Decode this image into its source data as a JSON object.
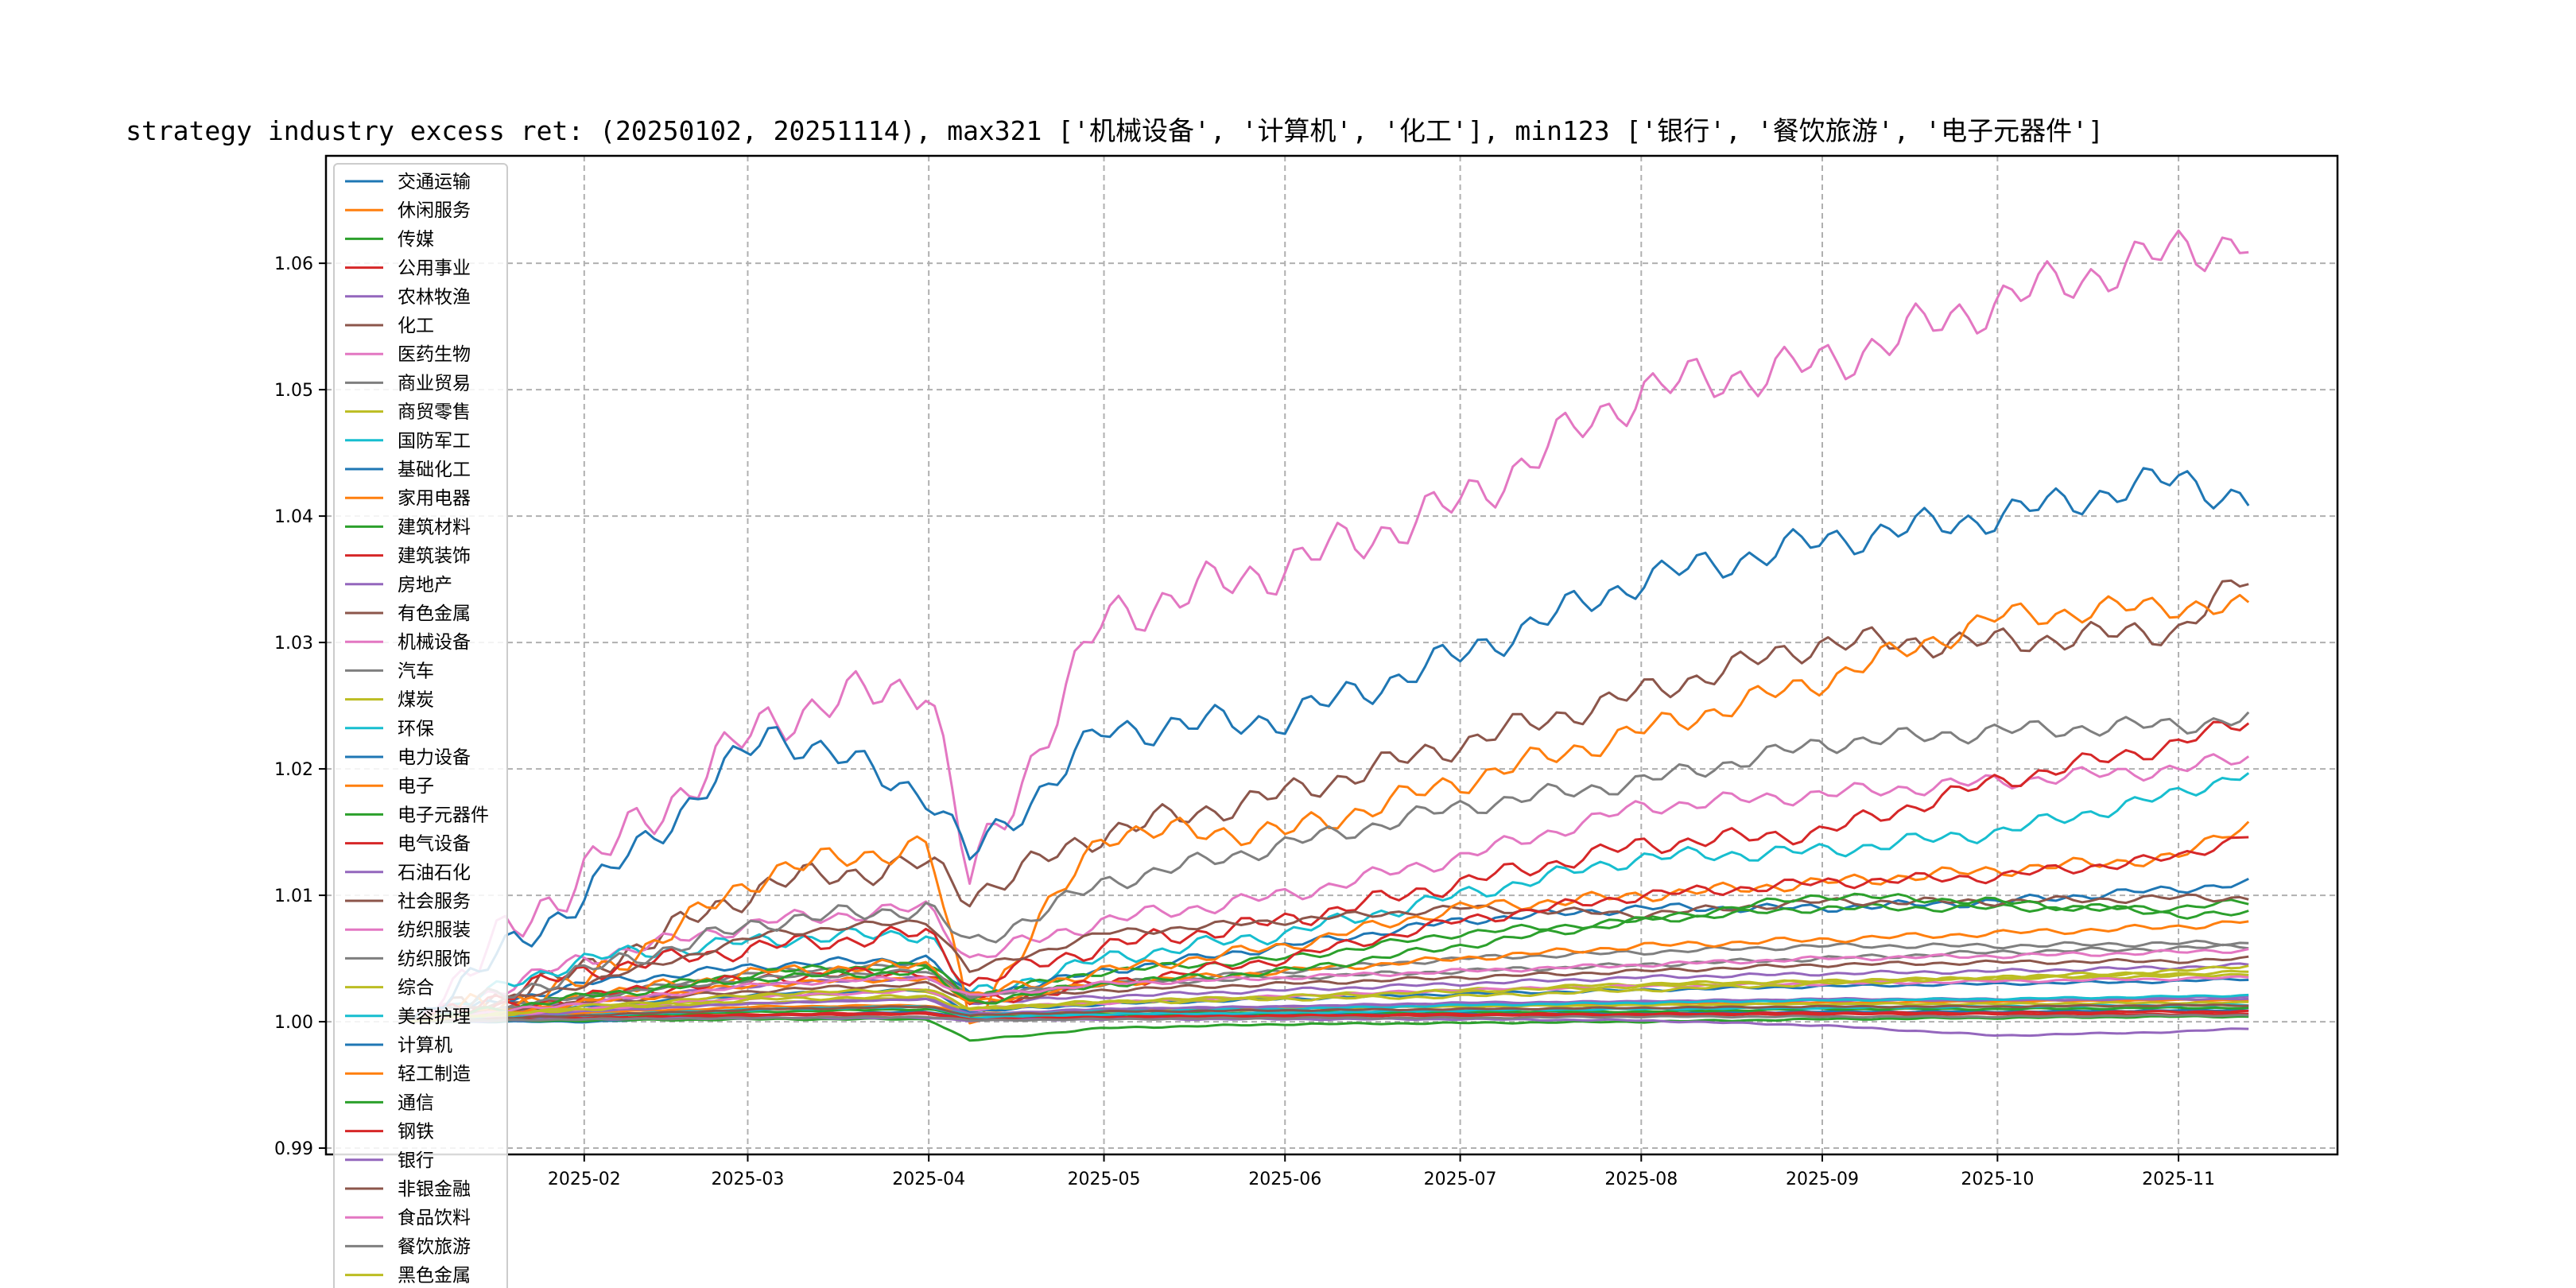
{
  "chart_data": {
    "type": "line",
    "title": "strategy industry excess ret: (20250102, 20251114), max321 ['机械设备', '计算机', '化工'], min123 ['银行', '餐饮旅游', '电子元器件']",
    "xlabel": "",
    "ylabel": "",
    "x_range": [
      "2025-01-02",
      "2025-11-14"
    ],
    "ylim": [
      0.9895,
      1.0685
    ],
    "x_ticks": [
      "2025-02",
      "2025-03",
      "2025-04",
      "2025-05",
      "2025-06",
      "2025-07",
      "2025-08",
      "2025-09",
      "2025-10",
      "2025-11"
    ],
    "y_ticks": [
      "0.99",
      "1.00",
      "1.01",
      "1.02",
      "1.03",
      "1.04",
      "1.05",
      "1.06"
    ],
    "grid": true,
    "legend_position": "upper-left",
    "knot_dates": [
      "2025-01-02",
      "2025-02-01",
      "2025-03-05",
      "2025-04-01",
      "2025-04-08",
      "2025-05-01",
      "2025-06-01",
      "2025-07-01",
      "2025-08-01",
      "2025-09-01",
      "2025-10-01",
      "2025-11-01",
      "2025-11-14"
    ],
    "series": [
      {
        "name": "交通运输",
        "color": "#1f77b4",
        "values": [
          1.0,
          1.0,
          1.0005,
          1.0008,
          1.0003,
          1.0005,
          1.0006,
          1.0007,
          1.0007,
          1.0008,
          1.0008,
          1.0009,
          1.0009
        ]
      },
      {
        "name": "休闲服务",
        "color": "#ff7f0e",
        "values": [
          1.0,
          1.0007,
          1.0012,
          1.0013,
          1.0006,
          1.0009,
          1.0011,
          1.0013,
          1.0014,
          1.0015,
          1.0016,
          1.0017,
          1.0017
        ]
      },
      {
        "name": "传媒",
        "color": "#2ca02c",
        "values": [
          1.0,
          1.0004,
          1.0008,
          1.001,
          1.0004,
          1.0006,
          1.0007,
          1.0008,
          1.0008,
          1.001,
          1.001,
          1.0011,
          1.0011
        ]
      },
      {
        "name": "公用事业",
        "color": "#d62728",
        "values": [
          1.0,
          1.0003,
          1.0006,
          1.0007,
          1.0002,
          1.0004,
          1.0005,
          1.0006,
          1.0006,
          1.0007,
          1.0007,
          1.0008,
          1.0008
        ]
      },
      {
        "name": "农林牧渔",
        "color": "#9467bd",
        "values": [
          1.0,
          1.0015,
          1.003,
          1.0035,
          1.0015,
          1.002,
          1.0025,
          1.003,
          1.0035,
          1.0038,
          1.004,
          1.0043,
          1.0045
        ]
      },
      {
        "name": "化工",
        "color": "#8c564b",
        "values": [
          1.0,
          1.004,
          1.011,
          1.0125,
          1.01,
          1.015,
          1.018,
          1.022,
          1.026,
          1.03,
          1.03,
          1.031,
          1.0355
        ]
      },
      {
        "name": "医药生物",
        "color": "#e377c2",
        "values": [
          1.0,
          1.005,
          1.008,
          1.009,
          1.005,
          1.008,
          1.01,
          1.013,
          1.017,
          1.018,
          1.019,
          1.02,
          1.021
        ]
      },
      {
        "name": "商业贸易",
        "color": "#7f7f7f",
        "values": [
          1.0,
          1.002,
          1.004,
          1.0045,
          1.002,
          1.003,
          1.004,
          1.005,
          1.0055,
          1.006,
          1.006,
          1.0062,
          1.0062
        ]
      },
      {
        "name": "商贸零售",
        "color": "#bcbd22",
        "values": [
          1.0,
          1.001,
          1.002,
          1.0025,
          1.001,
          1.0015,
          1.002,
          1.0025,
          1.003,
          1.0032,
          1.0034,
          1.0036,
          1.0038
        ]
      },
      {
        "name": "国防军工",
        "color": "#17becf",
        "values": [
          1.0,
          1.005,
          1.0065,
          1.007,
          1.002,
          1.005,
          1.007,
          1.01,
          1.013,
          1.0135,
          1.015,
          1.018,
          1.02
        ]
      },
      {
        "name": "基础化工",
        "color": "#1f77b4",
        "values": [
          1.0,
          1.003,
          1.0045,
          1.005,
          1.002,
          1.004,
          1.006,
          1.008,
          1.009,
          1.009,
          1.0095,
          1.0105,
          1.011
        ]
      },
      {
        "name": "家用电器",
        "color": "#ff7f0e",
        "values": [
          1.0,
          1.003,
          1.012,
          1.014,
          1.0,
          1.015,
          1.015,
          1.019,
          1.023,
          1.027,
          1.032,
          1.033,
          1.0325
        ]
      },
      {
        "name": "建筑材料",
        "color": "#2ca02c",
        "values": [
          1.0,
          1.002,
          1.004,
          1.0045,
          1.002,
          1.004,
          1.005,
          1.007,
          1.008,
          1.009,
          1.009,
          1.009,
          1.0095
        ]
      },
      {
        "name": "建筑装饰",
        "color": "#d62728",
        "values": [
          1.0,
          1.004,
          1.006,
          1.007,
          1.003,
          1.006,
          1.008,
          1.011,
          1.014,
          1.015,
          1.019,
          1.022,
          1.024
        ]
      },
      {
        "name": "房地产",
        "color": "#9467bd",
        "values": [
          1.0,
          1.001,
          1.0015,
          1.0018,
          1.0005,
          1.001,
          1.0012,
          1.0015,
          1.0016,
          1.0018,
          1.0018,
          1.0019,
          1.002
        ]
      },
      {
        "name": "有色金属",
        "color": "#8c564b",
        "values": [
          1.0,
          1.003,
          1.007,
          1.008,
          1.004,
          1.007,
          1.008,
          1.009,
          1.0085,
          1.0095,
          1.0095,
          1.0098,
          1.0098
        ]
      },
      {
        "name": "机械设备",
        "color": "#e377c2",
        "values": [
          1.0,
          1.012,
          1.024,
          1.027,
          1.011,
          1.032,
          1.036,
          1.041,
          1.05,
          1.052,
          1.057,
          1.061,
          1.062
        ]
      },
      {
        "name": "汽车",
        "color": "#7f7f7f",
        "values": [
          1.0,
          1.004,
          1.008,
          1.009,
          1.006,
          1.011,
          1.014,
          1.017,
          1.019,
          1.022,
          1.023,
          1.0235,
          1.024
        ]
      },
      {
        "name": "煤炭",
        "color": "#bcbd22",
        "values": [
          1.0,
          1.001,
          1.0015,
          1.002,
          1.0005,
          1.0008,
          1.001,
          1.0012,
          1.0013,
          1.0014,
          1.0014,
          1.0015,
          1.0015
        ]
      },
      {
        "name": "环保",
        "color": "#17becf",
        "values": [
          1.0,
          1.0005,
          1.001,
          1.0012,
          1.0003,
          1.0006,
          1.0007,
          1.0009,
          1.001,
          1.0011,
          1.0012,
          1.0013,
          1.0013
        ]
      },
      {
        "name": "电力设备",
        "color": "#1f77b4",
        "values": [
          1.0,
          1.0012,
          1.0022,
          1.0025,
          1.0008,
          1.0014,
          1.0018,
          1.0022,
          1.0025,
          1.0028,
          1.003,
          1.0032,
          1.0034
        ]
      },
      {
        "name": "电子",
        "color": "#ff7f0e",
        "values": [
          1.0,
          1.002,
          1.004,
          1.0045,
          1.002,
          1.004,
          1.006,
          1.009,
          1.01,
          1.011,
          1.012,
          1.013,
          1.016
        ]
      },
      {
        "name": "电子元器件",
        "color": "#2ca02c",
        "values": [
          1.0,
          1.0001,
          1.0002,
          1.0002,
          0.9985,
          0.9995,
          0.9998,
          0.9999,
          1.0,
          1.0002,
          1.0003,
          1.0004,
          1.0004
        ]
      },
      {
        "name": "电气设备",
        "color": "#d62728",
        "values": [
          1.0,
          1.002,
          1.0035,
          1.004,
          1.0015,
          1.003,
          1.005,
          1.008,
          1.01,
          1.011,
          1.0115,
          1.013,
          1.015
        ]
      },
      {
        "name": "石油石化",
        "color": "#9467bd",
        "values": [
          1.0,
          1.0008,
          1.0015,
          1.0018,
          1.0006,
          1.001,
          1.0012,
          1.0014,
          1.0016,
          1.0017,
          1.0017,
          1.0018,
          1.0018
        ]
      },
      {
        "name": "社会服务",
        "color": "#8c564b",
        "values": [
          1.0,
          1.0015,
          1.0025,
          1.003,
          1.0015,
          1.0025,
          1.003,
          1.0035,
          1.004,
          1.0045,
          1.0047,
          1.0048,
          1.005
        ]
      },
      {
        "name": "纺织服装",
        "color": "#e377c2",
        "values": [
          1.0,
          1.001,
          1.002,
          1.0025,
          1.001,
          1.0015,
          1.002,
          1.0025,
          1.0028,
          1.003,
          1.0032,
          1.0034,
          1.0035
        ]
      },
      {
        "name": "纺织服饰",
        "color": "#7f7f7f",
        "values": [
          1.0,
          1.002,
          1.0035,
          1.004,
          1.002,
          1.003,
          1.0035,
          1.004,
          1.0045,
          1.005,
          1.0055,
          1.0058,
          1.006
        ]
      },
      {
        "name": "综合",
        "color": "#bcbd22",
        "values": [
          1.0,
          1.001,
          1.0018,
          1.002,
          1.001,
          1.0015,
          1.0018,
          1.002,
          1.0025,
          1.003,
          1.0035,
          1.004,
          1.0045
        ]
      },
      {
        "name": "美容护理",
        "color": "#17becf",
        "values": [
          1.0,
          1.0005,
          1.001,
          1.0012,
          1.0005,
          1.0008,
          1.001,
          1.0013,
          1.0015,
          1.0017,
          1.0018,
          1.002,
          1.0021
        ]
      },
      {
        "name": "计算机",
        "color": "#1f77b4",
        "values": [
          1.0,
          1.01,
          1.023,
          1.018,
          1.013,
          1.023,
          1.024,
          1.029,
          1.035,
          1.038,
          1.04,
          1.043,
          1.041
        ]
      },
      {
        "name": "轻工制造",
        "color": "#ff7f0e",
        "values": [
          1.0,
          1.0015,
          1.003,
          1.0035,
          1.0015,
          1.003,
          1.004,
          1.005,
          1.006,
          1.0065,
          1.007,
          1.0075,
          1.008
        ]
      },
      {
        "name": "通信",
        "color": "#2ca02c",
        "values": [
          1.0,
          1.002,
          1.0035,
          1.004,
          1.0015,
          1.003,
          1.004,
          1.006,
          1.008,
          1.01,
          1.0095,
          1.0085,
          1.0085
        ]
      },
      {
        "name": "钢铁",
        "color": "#d62728",
        "values": [
          1.0,
          1.0003,
          1.0005,
          1.0006,
          1.0002,
          1.0003,
          1.0004,
          1.0005,
          1.0005,
          1.0006,
          1.0006,
          1.0006,
          1.0006
        ]
      },
      {
        "name": "银行",
        "color": "#9467bd",
        "values": [
          1.0,
          1.0002,
          1.0003,
          1.0003,
          1.0001,
          1.0002,
          1.0002,
          1.0002,
          1.0001,
          0.9997,
          0.9989,
          0.9992,
          0.9995
        ]
      },
      {
        "name": "非银金融",
        "color": "#8c564b",
        "values": [
          1.0,
          1.0005,
          1.001,
          1.0012,
          1.0005,
          1.0008,
          1.0009,
          1.001,
          1.0011,
          1.0012,
          1.0012,
          1.0013,
          1.0013
        ]
      },
      {
        "name": "食品饮料",
        "color": "#e377c2",
        "values": [
          1.0,
          1.0015,
          1.003,
          1.0035,
          1.002,
          1.003,
          1.0035,
          1.004,
          1.0045,
          1.005,
          1.0052,
          1.0055,
          1.0057
        ]
      },
      {
        "name": "餐饮旅游",
        "color": "#7f7f7f",
        "values": [
          1.0,
          1.0002,
          1.0003,
          1.0004,
          1.0001,
          1.0002,
          1.0003,
          1.0003,
          1.0004,
          1.0004,
          1.0004,
          1.0005,
          1.0005
        ]
      },
      {
        "name": "黑色金属",
        "color": "#bcbd22",
        "values": [
          1.0,
          1.0012,
          1.0022,
          1.0026,
          1.001,
          1.0016,
          1.002,
          1.0024,
          1.0028,
          1.0032,
          1.0035,
          1.0038,
          1.004
        ]
      }
    ]
  }
}
